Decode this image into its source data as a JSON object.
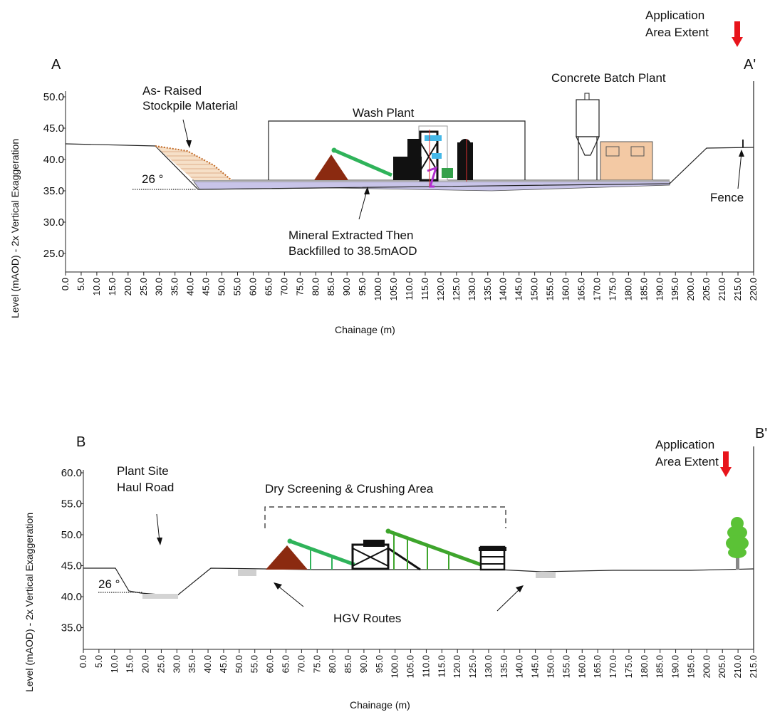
{
  "sections": [
    {
      "id": "A",
      "start_marker": "A",
      "end_marker": "A'",
      "y_axis_label": "Level (mAOD) - 2x Vertical Exaggeration",
      "x_axis_label": "Chainage (m)",
      "y_ticks": [
        "50.0",
        "45.0",
        "40.0",
        "35.0",
        "30.0",
        "25.0"
      ],
      "x_ticks": [
        "0.0",
        "5.0",
        "10.0",
        "15.0",
        "20.0",
        "25.0",
        "30.0",
        "35.0",
        "40.0",
        "45.0",
        "50.0",
        "55.0",
        "60.0",
        "65.0",
        "70.0",
        "75.0",
        "80.0",
        "85.0",
        "90.0",
        "95.0",
        "100.0",
        "105.0",
        "110.0",
        "115.0",
        "120.0",
        "125.0",
        "130.0",
        "135.0",
        "140.0",
        "145.0",
        "150.0",
        "155.0",
        "160.0",
        "165.0",
        "170.0",
        "175.0",
        "180.0",
        "185.0",
        "190.0",
        "195.0",
        "200.0",
        "205.0",
        "210.0",
        "215.0",
        "220.0"
      ],
      "slope_angle": "26 °",
      "annotations": {
        "stockpile_line1": "As- Raised",
        "stockpile_line2": "Stockpile Material",
        "wash_plant": "Wash Plant",
        "batch_plant": "Concrete Batch Plant",
        "mineral_line1": "Mineral Extracted Then",
        "mineral_line2": "Backfilled to 38.5mAOD",
        "fence": "Fence",
        "extent_line1": "Application",
        "extent_line2": "Area Extent"
      }
    },
    {
      "id": "B",
      "start_marker": "B",
      "end_marker": "B'",
      "y_axis_label": "Level (mAOD) - 2x Vertical Exaggeration",
      "x_axis_label": "Chainage (m)",
      "y_ticks": [
        "60.0",
        "55.0",
        "50.0",
        "45.0",
        "40.0",
        "35.0"
      ],
      "x_ticks": [
        "0.0",
        "5.0",
        "10.0",
        "15.0",
        "20.0",
        "25.0",
        "30.0",
        "35.0",
        "40.0",
        "45.0",
        "50.0",
        "55.0",
        "60.0",
        "65.0",
        "70.0",
        "75.0",
        "80.0",
        "85.0",
        "90.0",
        "95.0",
        "100.0",
        "105.0",
        "110.0",
        "115.0",
        "120.0",
        "125.0",
        "130.0",
        "135.0",
        "140.0",
        "145.0",
        "150.0",
        "155.0",
        "160.0",
        "165.0",
        "170.0",
        "175.0",
        "180.0",
        "185.0",
        "190.0",
        "195.0",
        "200.0",
        "205.0",
        "210.0",
        "215.0"
      ],
      "slope_angle": "26 °",
      "annotations": {
        "haul_line1": "Plant Site",
        "haul_line2": "Haul Road",
        "dry_screening": "Dry Screening & Crushing Area",
        "hgv": "HGV Routes",
        "extent_line1": "Application",
        "extent_line2": "Area Extent"
      }
    }
  ],
  "colors": {
    "extent_arrow": "#e8141b",
    "stockpile": "#c97a3a",
    "mound": "#8b2a10",
    "conveyor": "#2fb35a",
    "backfill": "#c8c4e8",
    "batch_building": "#f3c9a4",
    "tree": "#5bc236"
  }
}
